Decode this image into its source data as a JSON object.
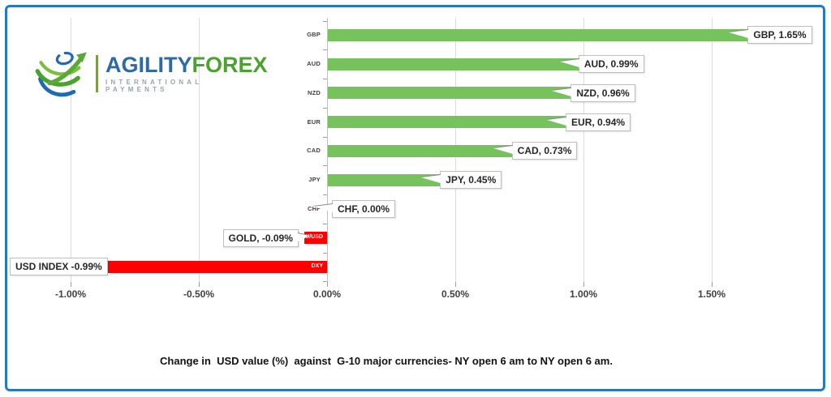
{
  "brand": {
    "name_part1": "AGILITY",
    "name_part2": "FOREX",
    "tagline": "INTERNATIONAL PAYMENTS",
    "logo_icon": "globe-swoosh-icon",
    "colors": {
      "blue": "#2C6BA6",
      "green": "#4AA32F"
    }
  },
  "chart_data": {
    "type": "bar",
    "orientation": "horizontal",
    "title": "Change in  USD value (%)  against  G-10 major currencies- NY open 6 am to NY open 6 am.",
    "xlabel": "",
    "ylabel": "",
    "categories": [
      "GBP",
      "AUD",
      "NZD",
      "EUR",
      "CAD",
      "JPY",
      "CHF",
      "XAU/USD",
      "DXY"
    ],
    "values": [
      1.65,
      0.99,
      0.96,
      0.94,
      0.73,
      0.45,
      0.0,
      -0.09,
      -0.99
    ],
    "data_labels": [
      "GBP, 1.65%",
      "AUD, 0.99%",
      "NZD, 0.96%",
      "EUR, 0.94%",
      "CAD, 0.73%",
      "JPY, 0.45%",
      "CHF, 0.00%",
      "GOLD, -0.09%",
      "USD INDEX -0.99%"
    ],
    "x_tick_labels": [
      "-1.00%",
      "-0.50%",
      "0.00%",
      "0.50%",
      "1.00%",
      "1.50%"
    ],
    "x_tick_values": [
      -1.0,
      -0.5,
      0.0,
      0.5,
      1.0,
      1.5
    ],
    "xlim": [
      -1.25,
      1.93
    ],
    "grid": true,
    "legend_position": "none",
    "positive_color": "#76C35D",
    "negative_color": "#FE0000",
    "gridline_color": "#DCDCDC",
    "frame_border_color": "#2878BE"
  }
}
